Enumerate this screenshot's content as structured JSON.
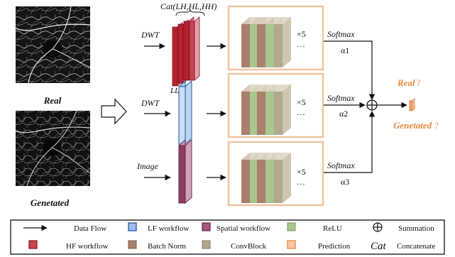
{
  "images": {
    "real_label": "Real",
    "generated_label": "Genetated"
  },
  "branches": [
    {
      "input_label": "DWT",
      "top_label": "Cat(LH,HL,HH)",
      "repeat": "×5",
      "softmax": "Softmax",
      "alpha": "α1"
    },
    {
      "input_label": "DWT",
      "top_label": "LL",
      "repeat": "×5",
      "softmax": "Softmax",
      "alpha": "α2"
    },
    {
      "input_label": "Image",
      "top_label": "",
      "repeat": "×5",
      "softmax": "Softmax",
      "alpha": "α3"
    }
  ],
  "ellipsis": "···",
  "summation_symbol": "⊕",
  "output": {
    "real": "Real",
    "real_q": "?",
    "generated": "Genetated",
    "generated_q": "?"
  },
  "legend": {
    "items": [
      {
        "label": "Data Flow",
        "icon": "arrow"
      },
      {
        "label": "LF workflow",
        "icon": "lf-box"
      },
      {
        "label": "Spatial workflow",
        "icon": "spatial-box"
      },
      {
        "label": "ReLU",
        "icon": "relu-box"
      },
      {
        "label": "Summation",
        "icon": "sum"
      },
      {
        "label": "HF workflow",
        "icon": "hf-box"
      },
      {
        "label": "Batch Norm",
        "icon": "bn-box"
      },
      {
        "label": "ConvBlock",
        "icon": "conv-box"
      },
      {
        "label": "Prediction",
        "icon": "pred-box"
      },
      {
        "label": "Concatenate",
        "icon": "cat-text"
      }
    ],
    "cat_symbol": "Cat"
  },
  "colors": {
    "hf": "#b5222e",
    "lf": "#3a7bd5",
    "spatial": "#8e3c66",
    "relu": "#a8c68d",
    "batchnorm": "#a8806d",
    "convblock": "#b3a88f",
    "prediction": "#f4a26a",
    "frame": "#f0c4a0",
    "output_text": "#e8893c"
  }
}
